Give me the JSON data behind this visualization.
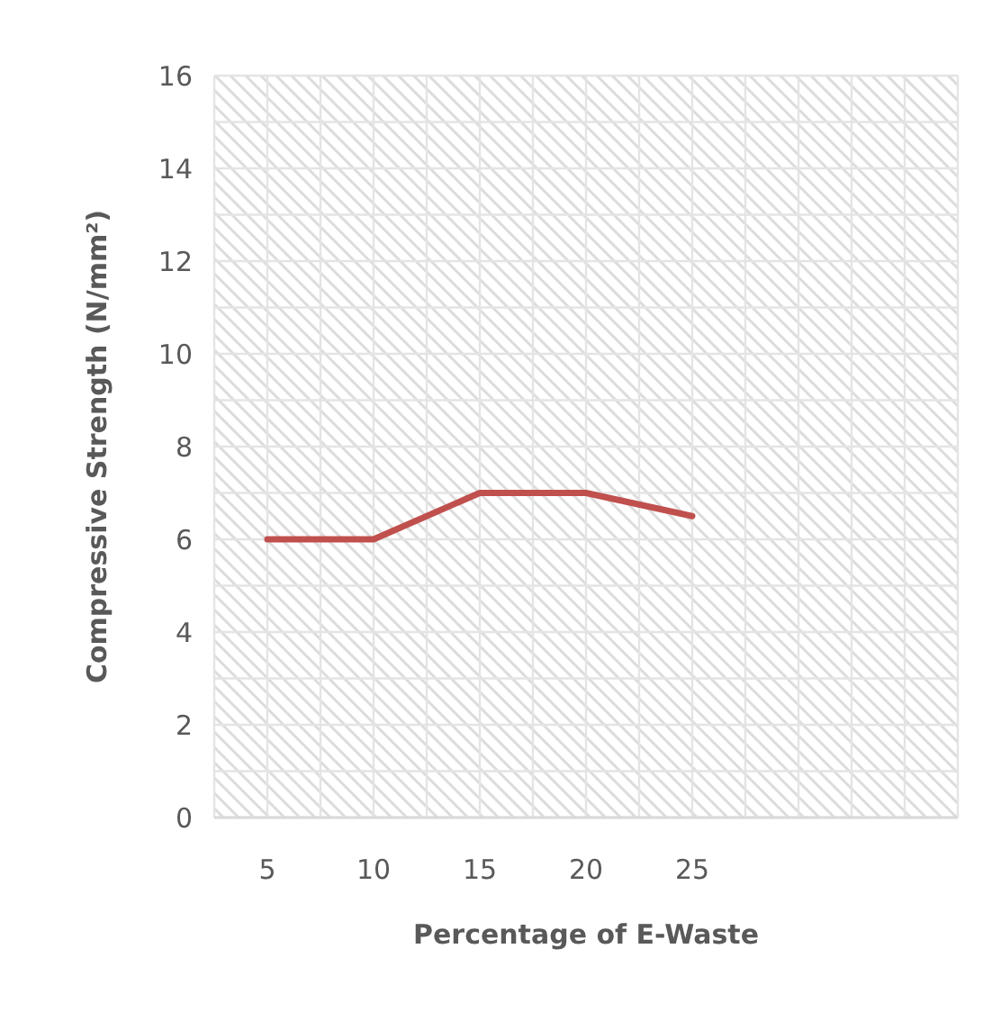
{
  "chart_data": {
    "type": "line",
    "xlabel": "Percentage of E-Waste",
    "ylabel": "Compressive Strength (N/mm²)",
    "categories": [
      "5",
      "10",
      "15",
      "20",
      "25",
      null,
      null
    ],
    "series": [
      {
        "color": "#c0504d",
        "values": [
          6,
          6,
          7,
          7,
          6.5,
          null,
          null
        ]
      }
    ],
    "ylim": [
      0,
      16
    ],
    "yticks": [
      0,
      2,
      4,
      6,
      8,
      10,
      12,
      14,
      16
    ],
    "grid": true,
    "marker": "none",
    "line_style": "solid"
  }
}
